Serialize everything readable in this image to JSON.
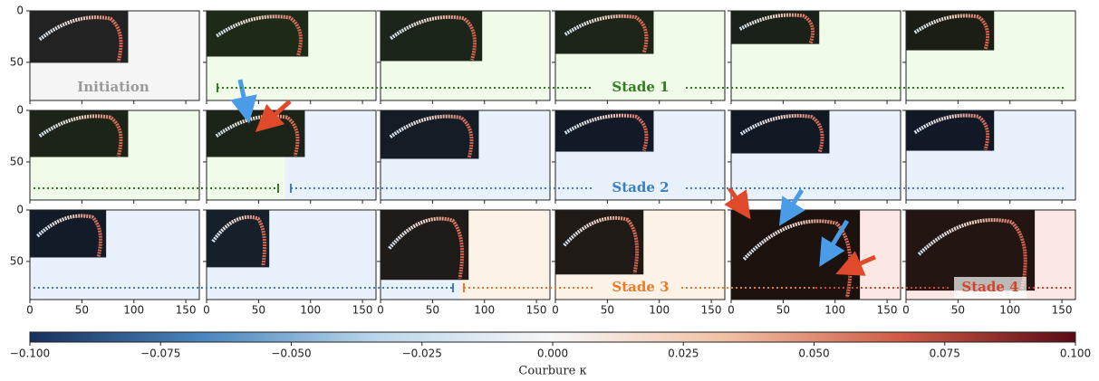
{
  "panels": {
    "xlim": [
      0,
      163
    ],
    "ylim": [
      0,
      87
    ],
    "xticks": [
      0,
      50,
      100,
      150
    ],
    "yticks": [
      0,
      50
    ]
  },
  "stages": [
    {
      "label": "Initiation",
      "color": "#9a9a9a"
    },
    {
      "label": "Stade 1",
      "color": "#2e7d1e"
    },
    {
      "label": "Stade 2",
      "color": "#3a7fc0"
    },
    {
      "label": "Stade 3",
      "color": "#ec7a26"
    },
    {
      "label": "Stade 4",
      "color": "#d2452b"
    }
  ],
  "colorbar": {
    "label": "Courbure κ",
    "lim": [
      -0.1,
      0.1
    ],
    "colors": [
      "#16305a",
      "#4a86bf",
      "#bcd7ea",
      "#f7f7f7",
      "#f0c0a3",
      "#cf5a45",
      "#5a0a16"
    ],
    "ticks": [
      {
        "value": -0.1,
        "label": "−0.100"
      },
      {
        "value": -0.075,
        "label": "−0.075"
      },
      {
        "value": -0.05,
        "label": "−0.050"
      },
      {
        "value": -0.025,
        "label": "−0.025"
      },
      {
        "value": 0,
        "label": "0.000"
      },
      {
        "value": 0.025,
        "label": "0.025"
      },
      {
        "value": 0.05,
        "label": "0.050"
      },
      {
        "value": 0.075,
        "label": "0.075"
      },
      {
        "value": 0.1,
        "label": "0.100"
      }
    ]
  }
}
